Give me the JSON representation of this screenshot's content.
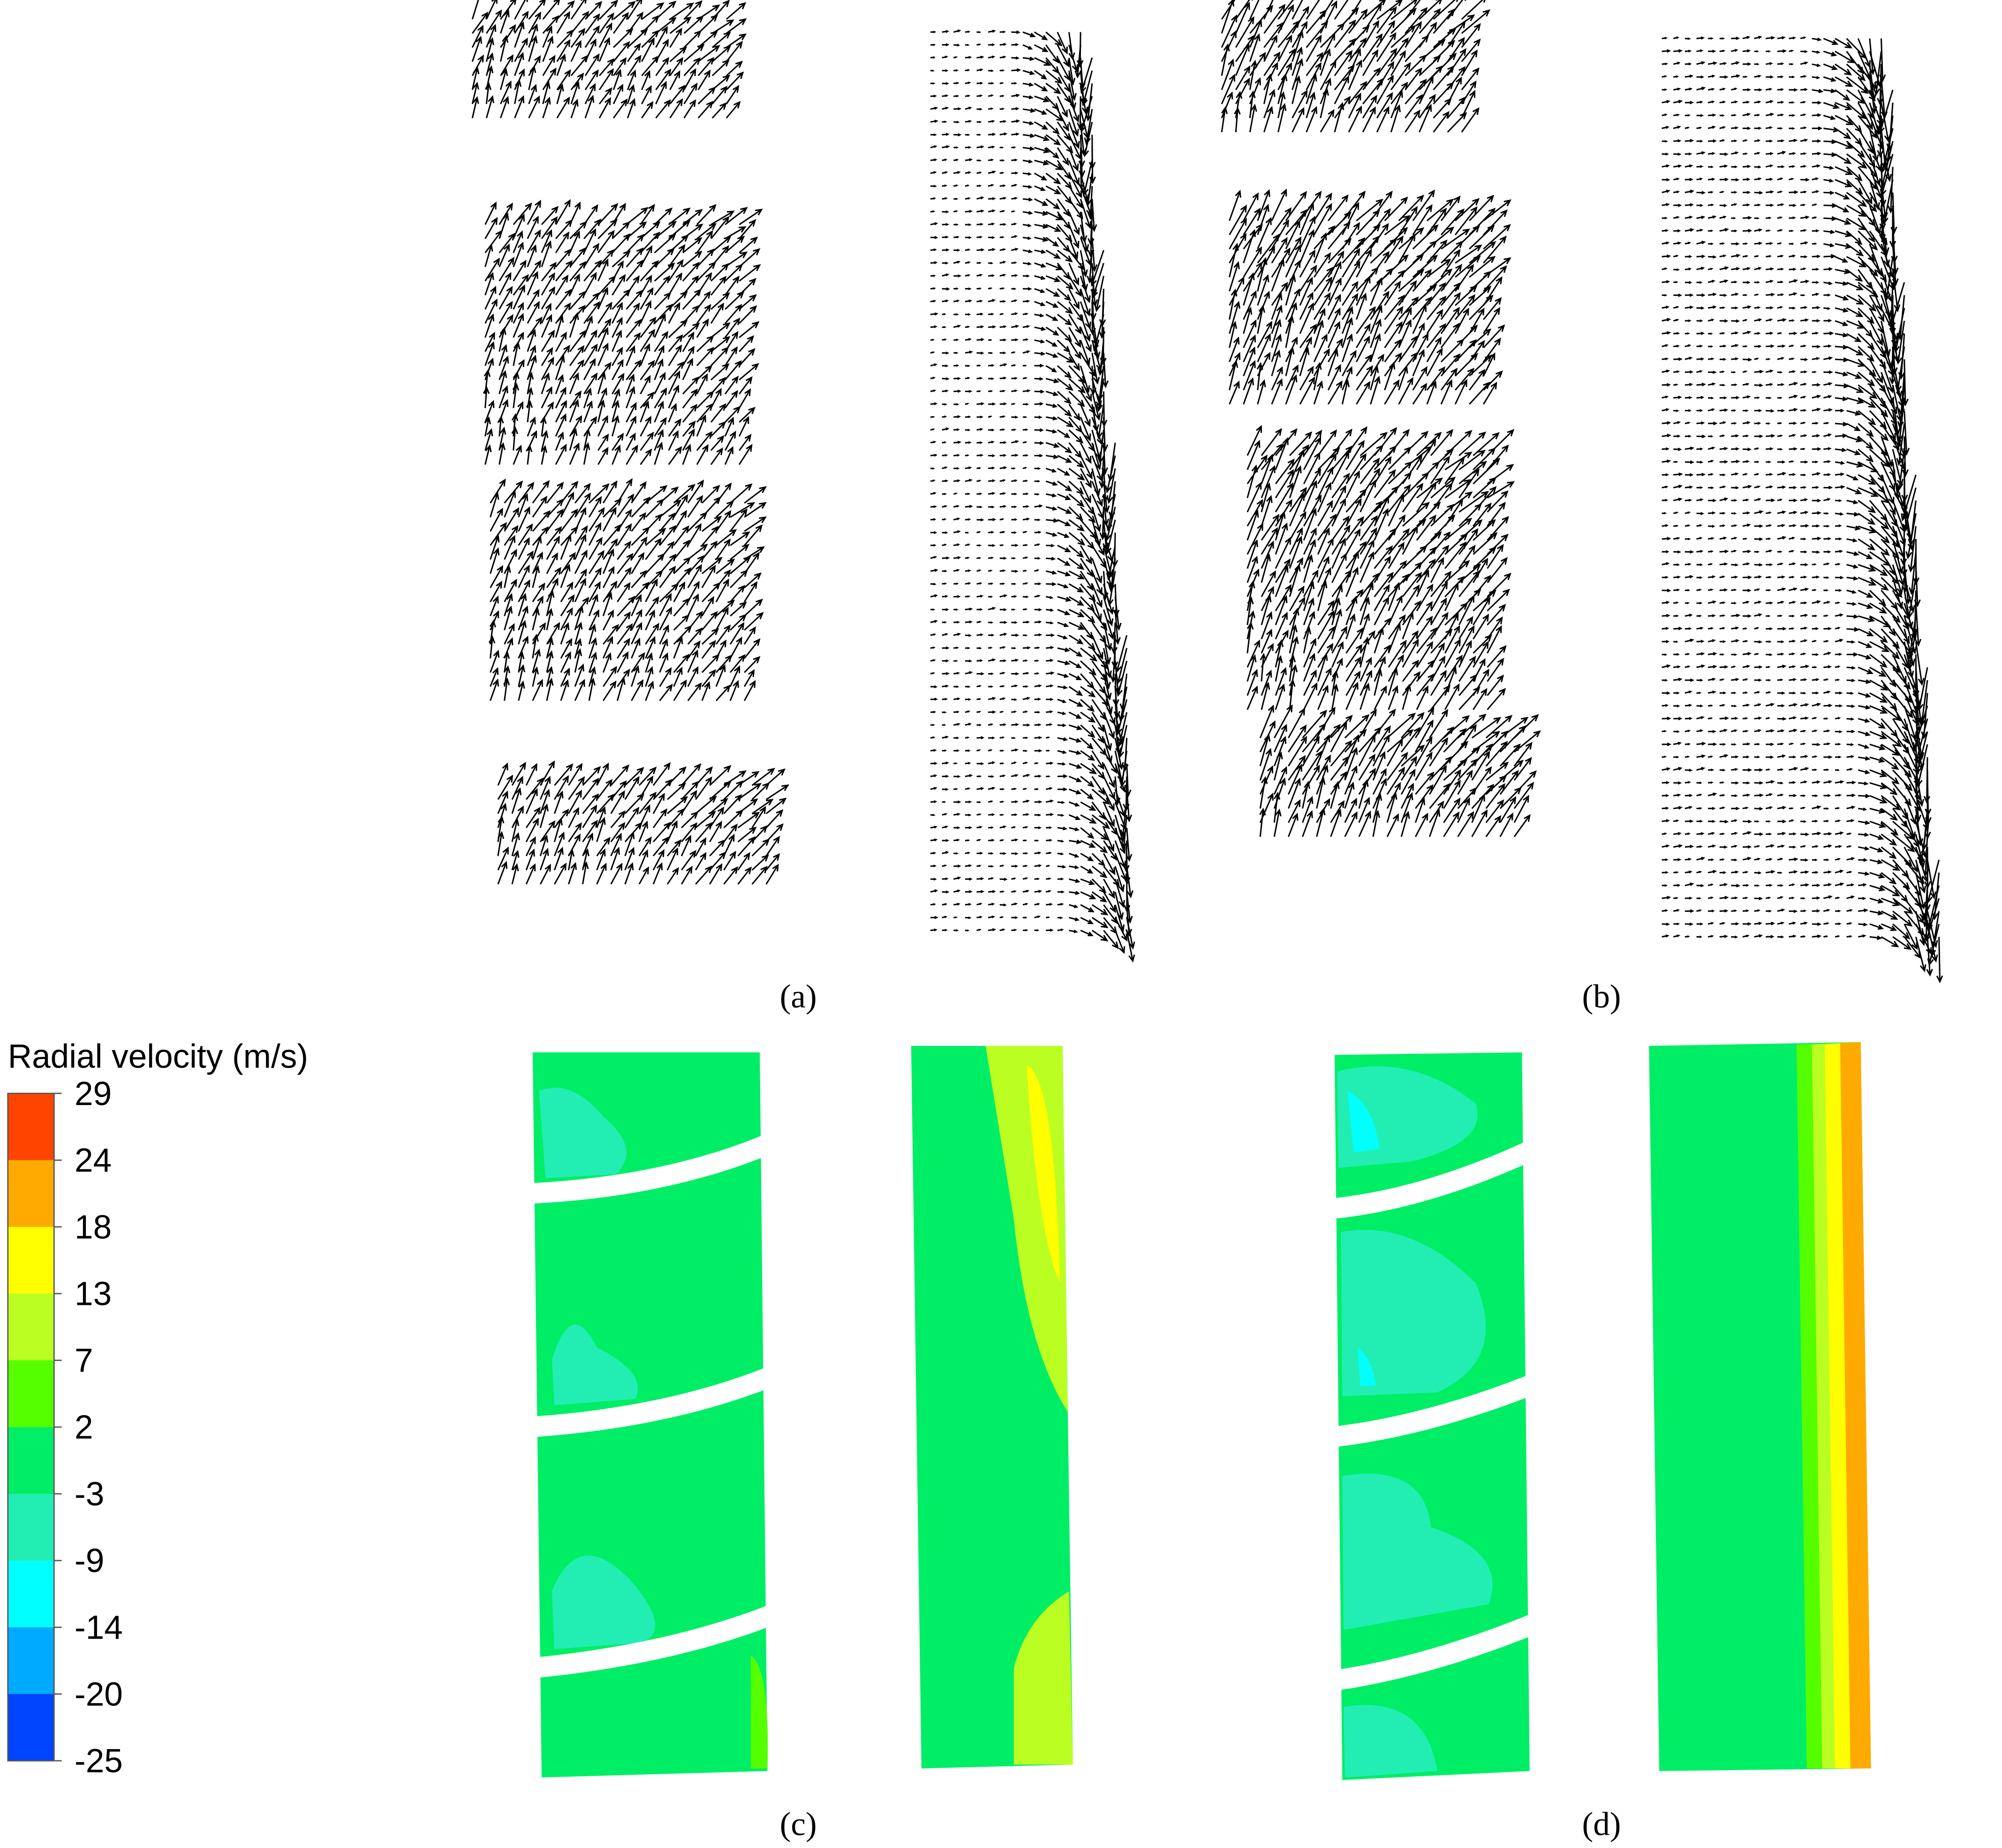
{
  "legend": {
    "title": "Radial velocity (m/s)",
    "ticks": [
      29,
      24,
      18,
      13,
      7,
      2,
      -3,
      -9,
      -14,
      -20,
      -25
    ],
    "colors": [
      "#ff4400",
      "#ffaa00",
      "#ffff00",
      "#bbff22",
      "#55ff00",
      "#00ee66",
      "#22eeb4",
      "#00ffff",
      "#00aaff",
      "#0044ff"
    ]
  },
  "panels": [
    {
      "label": "(a)"
    },
    {
      "label": "(b)"
    },
    {
      "label": "(c)"
    },
    {
      "label": "(d)"
    }
  ]
}
